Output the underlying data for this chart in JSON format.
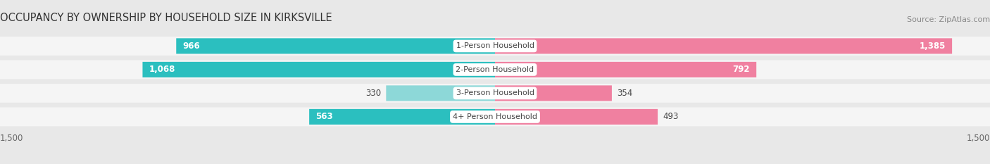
{
  "title": "OCCUPANCY BY OWNERSHIP BY HOUSEHOLD SIZE IN KIRKSVILLE",
  "source": "Source: ZipAtlas.com",
  "categories": [
    "1-Person Household",
    "2-Person Household",
    "3-Person Household",
    "4+ Person Household"
  ],
  "owner_values": [
    966,
    1068,
    330,
    563
  ],
  "renter_values": [
    1385,
    792,
    354,
    493
  ],
  "owner_color_large": "#2bbfbf",
  "owner_color_small": "#8dd8d8",
  "renter_color": "#f080a0",
  "axis_max": 1500,
  "bar_height": 0.62,
  "background_color": "#e8e8e8",
  "bar_bg_color": "#f5f5f5",
  "title_fontsize": 10.5,
  "source_fontsize": 8,
  "value_fontsize": 8.5,
  "category_fontsize": 8,
  "owner_threshold": 500,
  "fig_width": 14.06,
  "fig_height": 2.33
}
